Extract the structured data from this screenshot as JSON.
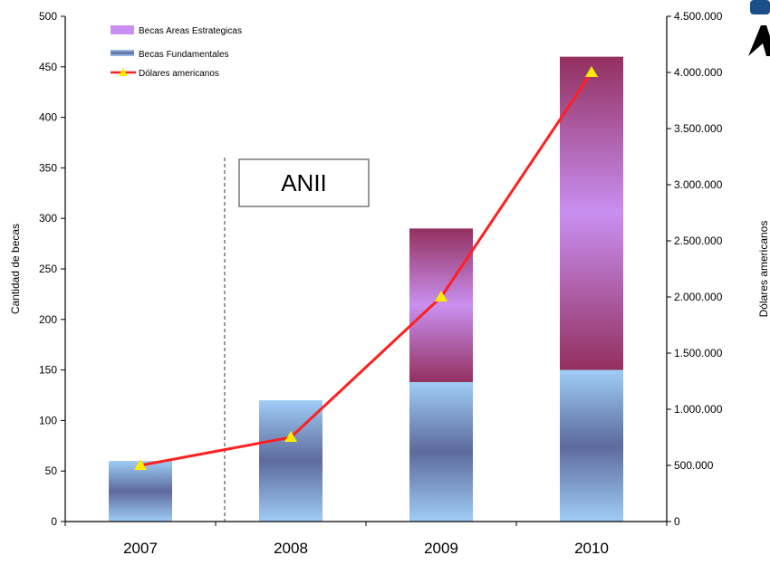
{
  "chart_data": {
    "type": "bar",
    "categories": [
      "2007",
      "2008",
      "2009",
      "2010"
    ],
    "series": [
      {
        "name": "Becas Fundamentales",
        "axis": "left",
        "values": [
          60,
          120,
          138,
          150
        ]
      },
      {
        "name": "Becas Areas Estrategicas",
        "axis": "left",
        "values": [
          0,
          0,
          152,
          310
        ]
      },
      {
        "name": "Dólares americanos",
        "axis": "right",
        "type": "line",
        "values": [
          500000,
          750000,
          2000000,
          4000000
        ]
      }
    ],
    "ylabel": "Cantidad de becas",
    "y2label": "Dólares americanos",
    "ylim": [
      0,
      500
    ],
    "y2lim": [
      0,
      4500000
    ],
    "yticks": [
      "0",
      "50",
      "100",
      "150",
      "200",
      "250",
      "300",
      "350",
      "400",
      "450",
      "500"
    ],
    "y2ticks": [
      "0",
      "500.000",
      "1.000.000",
      "1.500.000",
      "2.000.000",
      "2.500.000",
      "3.000.000",
      "3.500.000",
      "4.000.000",
      "4.500.000"
    ],
    "annotation": "ANII",
    "legend": "top-left",
    "grid": false,
    "colors": {
      "fundamentales_edge": "#9fcdf5",
      "fundamentales_mid": "#5d6a9c",
      "estrategicas_edge": "#93305f",
      "estrategicas_mid": "#c98ff0",
      "line": "#ff2020",
      "marker": "#ffea00"
    }
  }
}
